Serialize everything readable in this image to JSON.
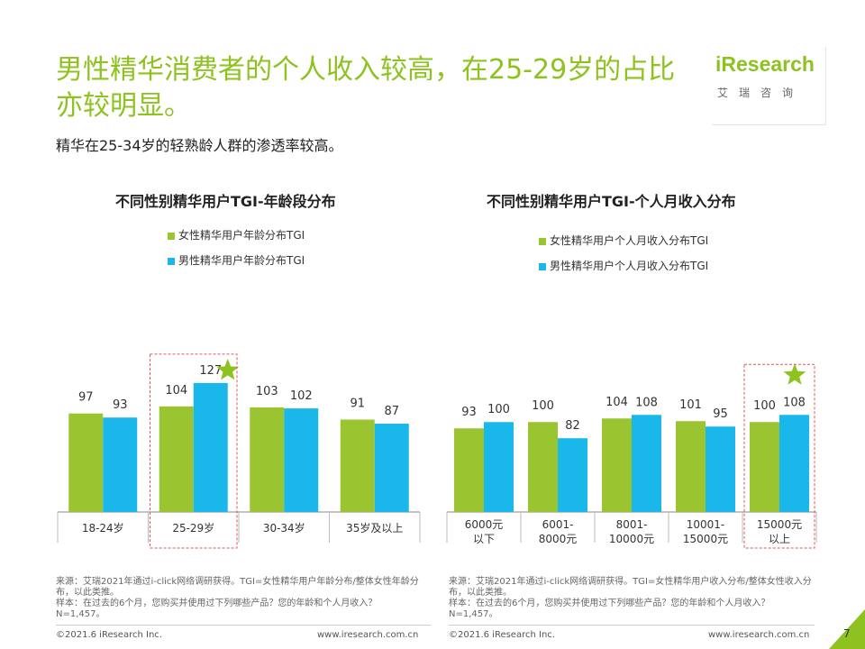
{
  "header": {
    "title": "男性精华消费者的个人收入较高，在25-29岁的占比亦较明显。",
    "subtitle": "精华在25-34岁的轻熟龄人群的渗透率较高。"
  },
  "logo": {
    "text": "iResearch",
    "cn": "艾瑞咨询"
  },
  "colors": {
    "female": "#9ac531",
    "male": "#1ab8ea",
    "accent": "#8dc21f",
    "highlight": "#e05656"
  },
  "chart_data": [
    {
      "type": "bar",
      "title": "不同性别精华用户TGI-年龄段分布",
      "categories": [
        "18-24岁",
        "25-29岁",
        "30-34岁",
        "35岁及以上"
      ],
      "series": [
        {
          "name": "女性精华用户年龄分布TGI",
          "values": [
            97,
            104,
            103,
            91
          ]
        },
        {
          "name": "男性精华用户年龄分布TGI",
          "values": [
            93,
            127,
            102,
            87
          ]
        }
      ],
      "highlight_category": "25-29岁",
      "star_on": {
        "series": 1,
        "category": 1
      }
    },
    {
      "type": "bar",
      "title": "不同性别精华用户TGI-个人月收入分布",
      "categories": [
        "6000元以下",
        "6001-8000元",
        "8001-10000元",
        "10001-15000元",
        "15000元以上"
      ],
      "category_lines": [
        [
          "6000元",
          "以下"
        ],
        [
          "6001-",
          "8000元"
        ],
        [
          "8001-",
          "10000元"
        ],
        [
          "10001-",
          "15000元"
        ],
        [
          "15000元",
          "以上"
        ]
      ],
      "series": [
        {
          "name": "女性精华用户个人月收入分布TGI",
          "values": [
            93,
            100,
            104,
            101,
            100
          ]
        },
        {
          "name": "男性精华用户个人月收入分布TGI",
          "values": [
            100,
            82,
            108,
            95,
            108
          ]
        }
      ],
      "highlight_category": "15000元以上",
      "star_on": {
        "series": 1,
        "category": 4
      }
    }
  ],
  "notes": {
    "left": "来源：艾瑞2021年通过i-click网络调研获得。TGI=女性精华用户年龄分布/整体女性年龄分布，以此类推。\n样本：在过去的6个月，您购买并使用过下列哪些产品？您的年龄和个人月收入？\nN=1,457。",
    "right": "来源：艾瑞2021年通过i-click网络调研获得。TGI=女性精华用户收入分布/整体女性收入分布，以此类推。\n样本：在过去的6个月，您购买并使用过下列哪些产品？您的年龄和个人月收入？\nN=1,457。"
  },
  "footer": {
    "copyright_left": "©2021.6 iResearch Inc.",
    "url_left": "www.iresearch.com.cn",
    "copyright_right": "©2021.6 iResearch Inc.",
    "url_right": "www.iresearch.com.cn",
    "page_number": "7"
  }
}
